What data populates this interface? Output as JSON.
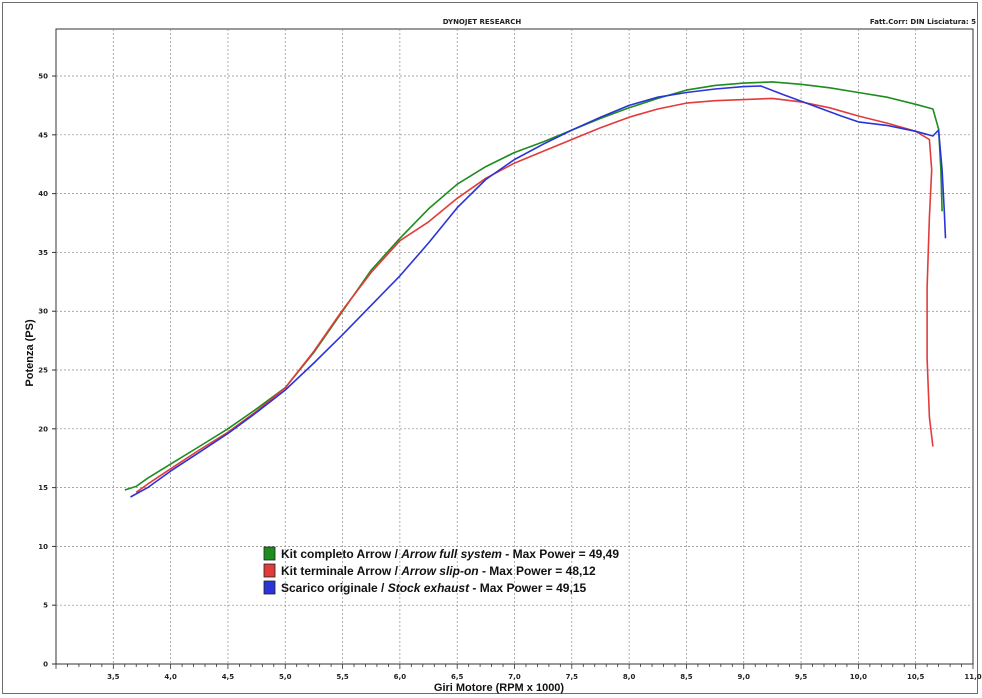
{
  "header": {
    "title": "DYNOJET RESEARCH",
    "right_text": "Fatt.Corr: DIN  Lisciatura: 5"
  },
  "chart_data": {
    "type": "line",
    "xlabel": "Giri Motore (RPM x 1000)",
    "ylabel": "Potenza (PS)",
    "xlim": [
      3.0,
      11.0
    ],
    "ylim": [
      0,
      54
    ],
    "x_ticks": [
      "3,5",
      "4,0",
      "4,5",
      "5,0",
      "5,5",
      "6,0",
      "6,5",
      "7,0",
      "7,5",
      "8,0",
      "8,5",
      "9,0",
      "9,5",
      "10,0",
      "10,5",
      "11,0"
    ],
    "y_ticks": [
      "0",
      "5",
      "10",
      "15",
      "20",
      "25",
      "30",
      "35",
      "40",
      "45",
      "50"
    ],
    "grid": true,
    "legend_position": "bottom-left",
    "series": [
      {
        "name_main": "Kit completo Arrow",
        "name_en": "Arrow full system",
        "max_label": "Max Power = 49,49",
        "color": "#1e8c1e",
        "points": [
          [
            3.6,
            14.8
          ],
          [
            3.7,
            15.1
          ],
          [
            3.8,
            15.8
          ],
          [
            4.0,
            17.0
          ],
          [
            4.25,
            18.5
          ],
          [
            4.5,
            20.0
          ],
          [
            4.75,
            21.7
          ],
          [
            5.0,
            23.5
          ],
          [
            5.25,
            26.5
          ],
          [
            5.5,
            30.0
          ],
          [
            5.75,
            33.5
          ],
          [
            6.0,
            36.2
          ],
          [
            6.25,
            38.7
          ],
          [
            6.5,
            40.8
          ],
          [
            6.75,
            42.3
          ],
          [
            7.0,
            43.5
          ],
          [
            7.25,
            44.4
          ],
          [
            7.5,
            45.4
          ],
          [
            7.75,
            46.4
          ],
          [
            8.0,
            47.3
          ],
          [
            8.25,
            48.1
          ],
          [
            8.5,
            48.8
          ],
          [
            8.75,
            49.2
          ],
          [
            9.0,
            49.4
          ],
          [
            9.25,
            49.5
          ],
          [
            9.5,
            49.3
          ],
          [
            9.75,
            49.0
          ],
          [
            10.0,
            48.6
          ],
          [
            10.25,
            48.2
          ],
          [
            10.5,
            47.6
          ],
          [
            10.65,
            47.2
          ],
          [
            10.7,
            45.5
          ],
          [
            10.72,
            42.0
          ],
          [
            10.73,
            38.5
          ]
        ]
      },
      {
        "name_main": "Kit terminale Arrow",
        "name_en": "Arrow slip-on",
        "max_label": "Max Power = 48,12",
        "color": "#e23b3b",
        "points": [
          [
            3.7,
            14.6
          ],
          [
            3.8,
            15.3
          ],
          [
            4.0,
            16.6
          ],
          [
            4.25,
            18.2
          ],
          [
            4.5,
            19.7
          ],
          [
            4.75,
            21.5
          ],
          [
            5.0,
            23.5
          ],
          [
            5.25,
            26.6
          ],
          [
            5.5,
            30.1
          ],
          [
            5.75,
            33.3
          ],
          [
            6.0,
            36.0
          ],
          [
            6.25,
            37.6
          ],
          [
            6.5,
            39.6
          ],
          [
            6.75,
            41.3
          ],
          [
            7.0,
            42.6
          ],
          [
            7.25,
            43.6
          ],
          [
            7.5,
            44.6
          ],
          [
            7.75,
            45.6
          ],
          [
            8.0,
            46.5
          ],
          [
            8.25,
            47.2
          ],
          [
            8.5,
            47.7
          ],
          [
            8.75,
            47.9
          ],
          [
            9.0,
            48.0
          ],
          [
            9.25,
            48.1
          ],
          [
            9.5,
            47.8
          ],
          [
            9.75,
            47.3
          ],
          [
            10.0,
            46.6
          ],
          [
            10.25,
            46.0
          ],
          [
            10.5,
            45.3
          ],
          [
            10.62,
            44.6
          ],
          [
            10.64,
            42.0
          ],
          [
            10.62,
            38.0
          ],
          [
            10.6,
            32.0
          ],
          [
            10.6,
            26.0
          ],
          [
            10.62,
            21.0
          ],
          [
            10.65,
            18.5
          ]
        ]
      },
      {
        "name_main": "Scarico originale",
        "name_en": "Stock exhaust",
        "max_label": "Max Power = 49,15",
        "color": "#2a34d8",
        "points": [
          [
            3.65,
            14.2
          ],
          [
            3.8,
            15.0
          ],
          [
            4.0,
            16.4
          ],
          [
            4.25,
            18.0
          ],
          [
            4.5,
            19.6
          ],
          [
            4.75,
            21.4
          ],
          [
            5.0,
            23.3
          ],
          [
            5.25,
            25.6
          ],
          [
            5.5,
            28.0
          ],
          [
            5.75,
            30.5
          ],
          [
            6.0,
            33.0
          ],
          [
            6.25,
            35.8
          ],
          [
            6.5,
            38.8
          ],
          [
            6.75,
            41.2
          ],
          [
            7.0,
            42.9
          ],
          [
            7.25,
            44.2
          ],
          [
            7.5,
            45.4
          ],
          [
            7.75,
            46.5
          ],
          [
            8.0,
            47.5
          ],
          [
            8.25,
            48.2
          ],
          [
            8.5,
            48.6
          ],
          [
            8.75,
            48.9
          ],
          [
            9.0,
            49.1
          ],
          [
            9.15,
            49.15
          ],
          [
            9.35,
            48.4
          ],
          [
            9.6,
            47.5
          ],
          [
            9.85,
            46.6
          ],
          [
            10.0,
            46.1
          ],
          [
            10.25,
            45.8
          ],
          [
            10.5,
            45.3
          ],
          [
            10.65,
            44.9
          ],
          [
            10.7,
            45.4
          ],
          [
            10.73,
            42.0
          ],
          [
            10.75,
            38.5
          ],
          [
            10.76,
            36.2
          ]
        ]
      }
    ]
  }
}
